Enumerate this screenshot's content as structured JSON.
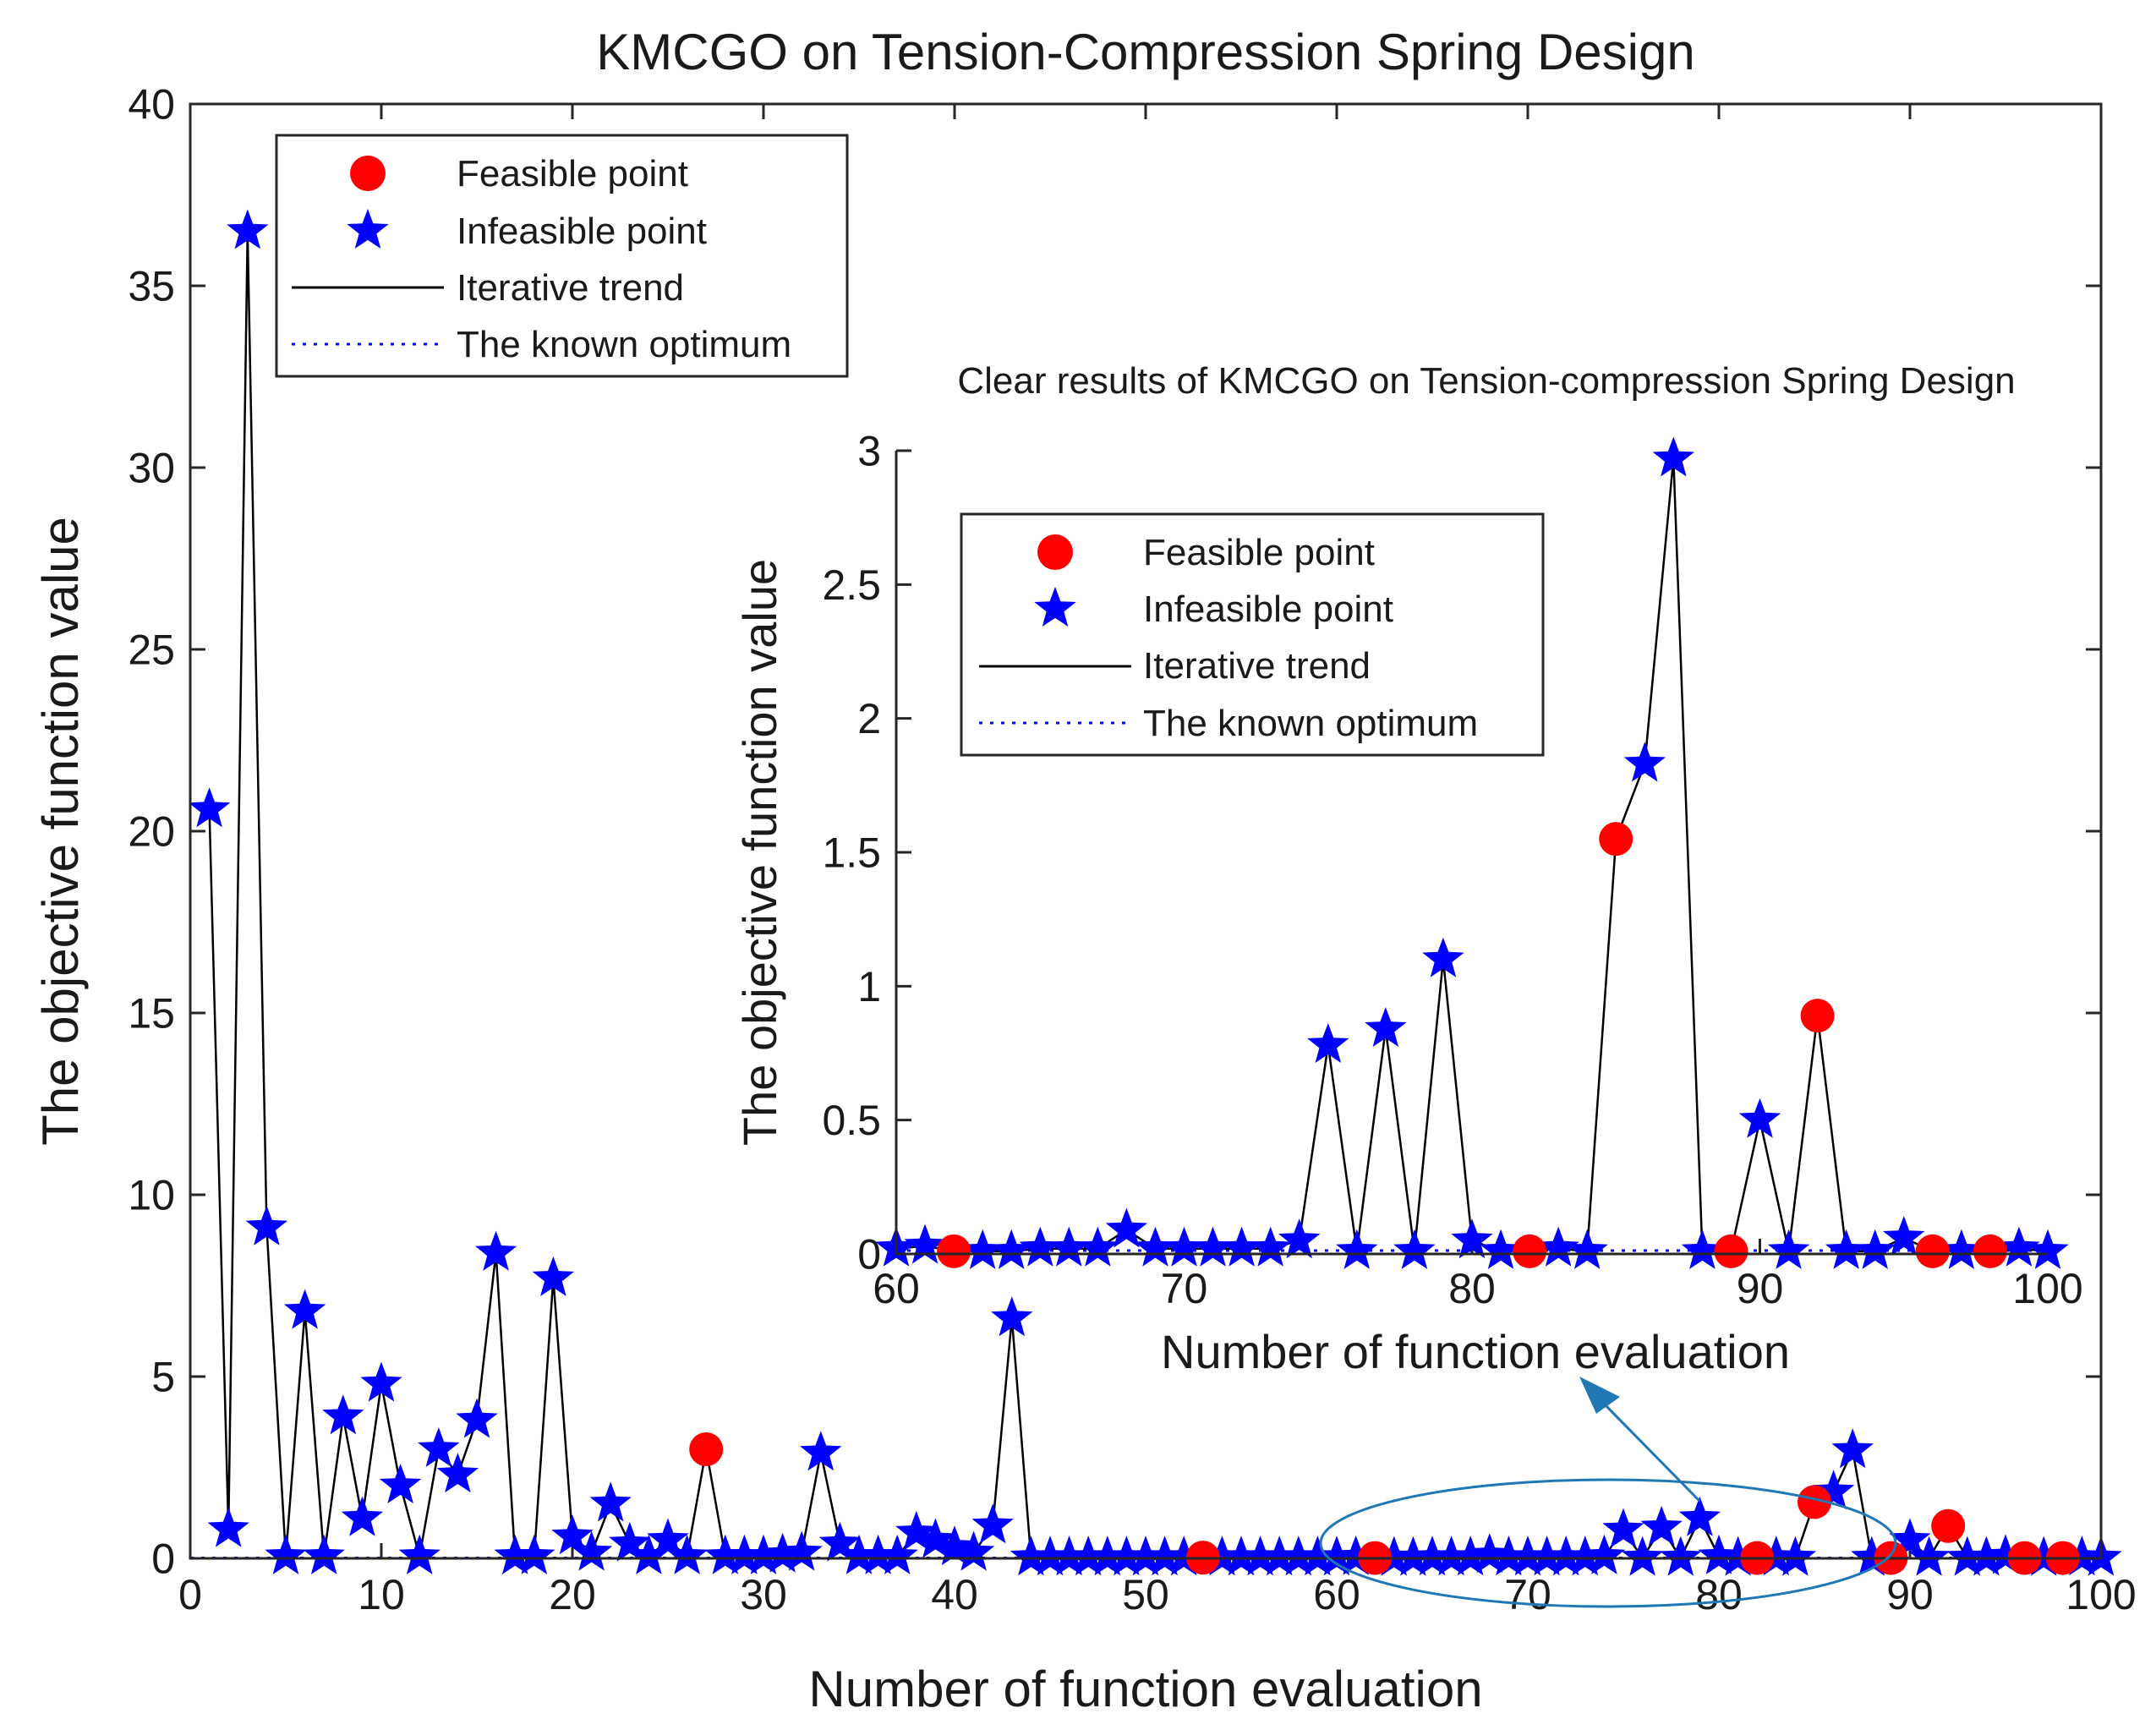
{
  "colors": {
    "feasible": "#ff0000",
    "infeasible": "#0000ff",
    "trend": "#000000",
    "optimum": "#0000ff",
    "annotation": "#1f77b4",
    "axis": "#262626"
  },
  "chart_data": [
    {
      "id": "main",
      "type": "scatter",
      "title": "KMCGO on Tension-Compression Spring Design",
      "xlabel": "Number of function evaluation",
      "ylabel": "The objective function value",
      "xlim": [
        0,
        100
      ],
      "ylim": [
        0,
        40
      ],
      "xticks": [
        0,
        10,
        20,
        30,
        40,
        50,
        60,
        70,
        80,
        90,
        100
      ],
      "yticks": [
        0,
        5,
        10,
        15,
        20,
        25,
        30,
        35,
        40
      ],
      "grid": false,
      "legend_position": "top-left",
      "legend": [
        {
          "label": "Feasible point",
          "marker": "circle"
        },
        {
          "label": "Infeasible point",
          "marker": "star"
        },
        {
          "label": "Iterative trend",
          "marker": "line"
        },
        {
          "label": "The known optimum",
          "marker": "dotted"
        }
      ],
      "optimum_value": 0.0127,
      "x": [
        1,
        2,
        3,
        4,
        5,
        6,
        7,
        8,
        9,
        10,
        11,
        12,
        13,
        14,
        15,
        16,
        17,
        18,
        19,
        20,
        21,
        22,
        23,
        24,
        25,
        26,
        27,
        28,
        29,
        30,
        31,
        32,
        33,
        34,
        35,
        36,
        37,
        38,
        39,
        40,
        41,
        42,
        43,
        44,
        45,
        46,
        47,
        48,
        49,
        50,
        51,
        52,
        53,
        54,
        55,
        56,
        57,
        58,
        59,
        60,
        61,
        62,
        63,
        64,
        65,
        66,
        67,
        68,
        69,
        70,
        71,
        72,
        73,
        74,
        75,
        76,
        77,
        78,
        79,
        80,
        81,
        82,
        83,
        84,
        85,
        86,
        87,
        88,
        89,
        90,
        91,
        92,
        93,
        94,
        95,
        96,
        97,
        98,
        99,
        100
      ],
      "y": [
        20.6,
        0.8,
        36.5,
        9.1,
        0.05,
        6.8,
        0.05,
        3.9,
        1.1,
        4.8,
        2.0,
        0.05,
        3.0,
        2.3,
        3.8,
        8.4,
        0.05,
        0.05,
        7.7,
        0.6,
        0.15,
        1.5,
        0.4,
        0.05,
        0.5,
        0.05,
        3.0,
        0.05,
        0.05,
        0.05,
        0.1,
        0.15,
        2.9,
        0.4,
        0.05,
        0.05,
        0.05,
        0.7,
        0.5,
        0.3,
        0.15,
        0.9,
        6.6,
        0.02,
        0.02,
        0.02,
        0.02,
        0.02,
        0.02,
        0.02,
        0.02,
        0.02,
        0.02,
        0.02,
        0.02,
        0.02,
        0.02,
        0.02,
        0.02,
        0.02,
        0.03,
        0.01,
        0.01,
        0.01,
        0.02,
        0.02,
        0.02,
        0.09,
        0.02,
        0.02,
        0.02,
        0.02,
        0.02,
        0.05,
        0.78,
        0.01,
        0.84,
        0.01,
        1.1,
        0.05,
        0.01,
        0.01,
        0.02,
        0.01,
        1.55,
        1.83,
        2.97,
        0.01,
        0.01,
        0.5,
        0.01,
        0.89,
        0.01,
        0.01,
        0.06,
        0.01,
        0.01,
        0.01,
        0.02,
        0.01
      ],
      "feasible": [
        0,
        0,
        0,
        0,
        0,
        0,
        0,
        0,
        0,
        0,
        0,
        0,
        0,
        0,
        0,
        0,
        0,
        0,
        0,
        0,
        0,
        0,
        0,
        0,
        0,
        0,
        1,
        0,
        0,
        0,
        0,
        0,
        0,
        0,
        0,
        0,
        0,
        0,
        0,
        0,
        0,
        0,
        0,
        0,
        0,
        0,
        0,
        0,
        0,
        0,
        0,
        0,
        1,
        0,
        0,
        0,
        0,
        0,
        0,
        0,
        0,
        1,
        0,
        0,
        0,
        0,
        0,
        0,
        0,
        0,
        0,
        0,
        0,
        0,
        0,
        0,
        0,
        0,
        0,
        0,
        0,
        1,
        0,
        0,
        1,
        0,
        0,
        0,
        1,
        0,
        0,
        1,
        0,
        0,
        0,
        1,
        0,
        1,
        0,
        0
      ]
    },
    {
      "id": "inset",
      "type": "scatter",
      "title": "Clear results of KMCGO on Tension-compression Spring Design",
      "xlabel": "Number of function evaluation",
      "ylabel": "The objective function value",
      "xlim": [
        60,
        100
      ],
      "ylim": [
        0,
        3
      ],
      "xticks": [
        60,
        70,
        80,
        90,
        100
      ],
      "yticks": [
        0,
        0.5,
        1,
        1.5,
        2,
        2.5,
        3
      ],
      "ytick_labels": [
        "0",
        "0.5",
        "1",
        "1.5",
        "2",
        "2.5",
        "3"
      ],
      "grid": false,
      "legend_position": "top-left",
      "legend": [
        {
          "label": "Feasible point",
          "marker": "circle"
        },
        {
          "label": "Infeasible point",
          "marker": "star"
        },
        {
          "label": "Iterative trend",
          "marker": "line"
        },
        {
          "label": "The known optimum",
          "marker": "dotted"
        }
      ],
      "source": "main",
      "x_range": [
        60,
        100
      ]
    }
  ]
}
